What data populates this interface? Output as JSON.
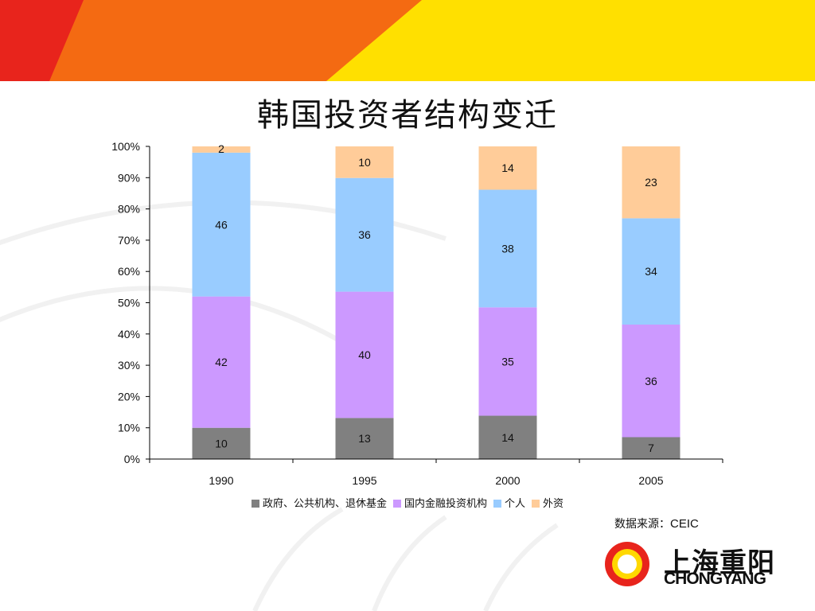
{
  "title": "韩国投资者结构变迁",
  "source": {
    "label": "数据来源：",
    "value": "CEIC"
  },
  "brand": {
    "name_cn": "上海重阳",
    "name_en": "CHONGYANG"
  },
  "colors": {
    "header_red": "#e8241c",
    "header_orange": "#f46a12",
    "header_yellow": "#ffe000",
    "logo_red": "#e8241c",
    "logo_yellow": "#ffd800"
  },
  "chart_data": {
    "type": "bar",
    "stacked": true,
    "categories": [
      "1990",
      "1995",
      "2000",
      "2005"
    ],
    "series": [
      {
        "name": "政府、公共机构、退休基金",
        "color": "#808080",
        "values": [
          10,
          13,
          14,
          7
        ]
      },
      {
        "name": "国内金融投资机构",
        "color": "#cc99ff",
        "values": [
          42,
          40,
          35,
          36
        ]
      },
      {
        "name": "个人",
        "color": "#99ccff",
        "values": [
          46,
          36,
          38,
          34
        ]
      },
      {
        "name": "外资",
        "color": "#ffcc99",
        "values": [
          2,
          10,
          14,
          23
        ]
      }
    ],
    "ylim": [
      0,
      100
    ],
    "yticks": [
      "0%",
      "10%",
      "20%",
      "30%",
      "40%",
      "50%",
      "60%",
      "70%",
      "80%",
      "90%",
      "100%"
    ],
    "grid": false,
    "legend_position": "bottom"
  }
}
